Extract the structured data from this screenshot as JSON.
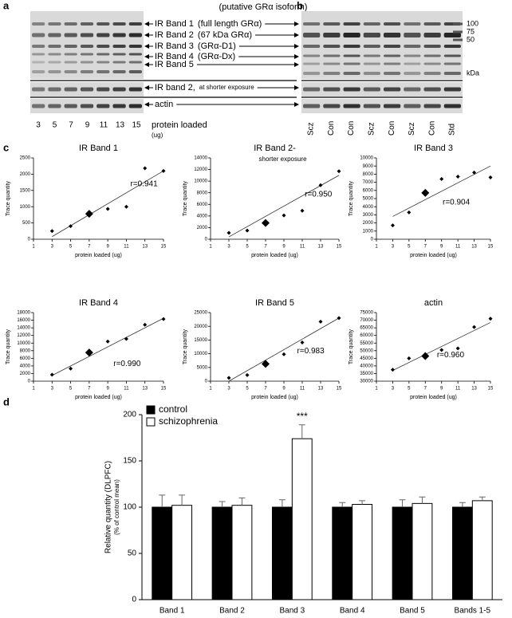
{
  "panels": [
    "a",
    "b",
    "c",
    "d"
  ],
  "blot_a": {
    "title": "(putative GRα isoform)",
    "bands": [
      {
        "label": "IR Band 1",
        "note": "(full length GRα)"
      },
      {
        "label": "IR Band 2",
        "note": "(67 kDa GRα)"
      },
      {
        "label": "IR Band 3",
        "note": "(GRα-D1)"
      },
      {
        "label": "IR Band 4",
        "note": "(GRα-Dx)"
      },
      {
        "label": "IR Band 5"
      },
      {
        "label": "IR band 2,",
        "note": "at shorter exposure"
      },
      {
        "label": "actin"
      }
    ],
    "lanes": [
      "3",
      "5",
      "7",
      "9",
      "11",
      "13",
      "15"
    ],
    "xlabel": "protein loaded",
    "xunit": "(ug)"
  },
  "blot_b": {
    "lanes": [
      "Scz",
      "Con",
      "Con",
      "Scz",
      "Con",
      "Scz",
      "Con",
      "Std"
    ],
    "markers": [
      "100",
      "75",
      "50"
    ],
    "unit": "kDa"
  },
  "chart_data": [
    {
      "type": "scatter",
      "title": "IR Band 1",
      "annotation": "r=0.941",
      "highlight_x": 7,
      "x": [
        3,
        5,
        7,
        9,
        11,
        13,
        15
      ],
      "values": [
        250,
        400,
        780,
        930,
        1000,
        2180,
        2100
      ],
      "trendline": {
        "x": [
          3,
          15
        ],
        "y": [
          80,
          2100
        ]
      },
      "xlim": [
        1,
        15
      ],
      "xticks": [
        1,
        3,
        5,
        7,
        9,
        11,
        13,
        15
      ],
      "ylim": [
        0,
        2500
      ],
      "yticks": [
        0,
        500,
        1000,
        1500,
        2000,
        2500
      ],
      "xlabel": "protein loaded (ug)",
      "ylabel": "Trace quantity"
    },
    {
      "type": "scatter",
      "title": "IR Band 2-",
      "subtitle": "shorter exposure",
      "annotation": "r=0.950",
      "highlight_x": 7,
      "x": [
        3,
        5,
        7,
        9,
        11,
        13,
        15
      ],
      "values": [
        1100,
        1500,
        2800,
        4100,
        4900,
        9300,
        11700
      ],
      "trendline": {
        "x": [
          3,
          15
        ],
        "y": [
          400,
          11000
        ]
      },
      "xlim": [
        1,
        15
      ],
      "xticks": [
        1,
        3,
        5,
        7,
        9,
        11,
        13,
        15
      ],
      "ylim": [
        0,
        14000
      ],
      "yticks": [
        0,
        2000,
        4000,
        6000,
        8000,
        10000,
        12000,
        14000
      ],
      "xlabel": "protein loaded (ug)",
      "ylabel": "Trace quantity"
    },
    {
      "type": "scatter",
      "title": "IR Band 3",
      "annotation": "r=0.904",
      "highlight_x": 7,
      "x": [
        3,
        5,
        7,
        9,
        11,
        13,
        15
      ],
      "values": [
        1700,
        3300,
        5700,
        7400,
        7700,
        8200,
        7600
      ],
      "trendline": {
        "x": [
          3,
          15
        ],
        "y": [
          2800,
          9000
        ]
      },
      "xlim": [
        1,
        15
      ],
      "xticks": [
        1,
        3,
        5,
        7,
        9,
        11,
        13,
        15
      ],
      "ylim": [
        0,
        10000
      ],
      "yticks": [
        0,
        1000,
        2000,
        3000,
        4000,
        5000,
        6000,
        7000,
        8000,
        9000,
        10000
      ],
      "xlabel": "protein loaded (ug)",
      "ylabel": "Trace quantity"
    },
    {
      "type": "scatter",
      "title": "IR Band 4",
      "annotation": "r=0.990",
      "highlight_x": 7,
      "x": [
        3,
        5,
        7,
        9,
        11,
        13,
        15
      ],
      "values": [
        1700,
        3300,
        7500,
        10400,
        11100,
        14800,
        16300
      ],
      "trendline": {
        "x": [
          3,
          15
        ],
        "y": [
          1500,
          16500
        ]
      },
      "xlim": [
        1,
        15
      ],
      "xticks": [
        1,
        3,
        5,
        7,
        9,
        11,
        13,
        15
      ],
      "ylim": [
        0,
        18000
      ],
      "yticks": [
        0,
        2000,
        4000,
        6000,
        8000,
        10000,
        12000,
        14000,
        16000,
        18000
      ],
      "xlabel": "protein loaded (ug)",
      "ylabel": "Trace quantity"
    },
    {
      "type": "scatter",
      "title": "IR Band 5",
      "annotation": "r=0.983",
      "highlight_x": 7,
      "x": [
        3,
        5,
        7,
        9,
        11,
        13,
        15
      ],
      "values": [
        1200,
        2200,
        6300,
        9800,
        14100,
        21700,
        23000
      ],
      "trendline": {
        "x": [
          3,
          15
        ],
        "y": [
          0,
          23000
        ]
      },
      "xlim": [
        1,
        15
      ],
      "xticks": [
        1,
        3,
        5,
        7,
        9,
        11,
        13,
        15
      ],
      "ylim": [
        0,
        25000
      ],
      "yticks": [
        0,
        5000,
        10000,
        15000,
        20000,
        25000
      ],
      "xlabel": "protein loaded (ug)",
      "ylabel": "Trace quantity"
    },
    {
      "type": "scatter",
      "title": "actin",
      "annotation": "r=0.960",
      "highlight_x": 7,
      "x": [
        3,
        5,
        7,
        9,
        11,
        13,
        15
      ],
      "values": [
        37500,
        45000,
        46500,
        50500,
        51500,
        65500,
        71000
      ],
      "trendline": {
        "x": [
          3,
          15
        ],
        "y": [
          37000,
          68500
        ]
      },
      "xlim": [
        1,
        15
      ],
      "xticks": [
        1,
        3,
        5,
        7,
        9,
        11,
        13,
        15
      ],
      "ylim": [
        30000,
        75000
      ],
      "yticks": [
        30000,
        35000,
        40000,
        45000,
        50000,
        55000,
        60000,
        65000,
        70000,
        75000
      ],
      "xlabel": "protein loaded (ug)",
      "ylabel": "Trace quantity"
    },
    {
      "type": "bar",
      "categories": [
        "Band 1",
        "Band 2",
        "Band 3",
        "Band 4",
        "Band 5",
        "Bands 1-5"
      ],
      "series": [
        {
          "name": "control",
          "color": "#000000",
          "values": [
            100,
            100,
            100,
            100,
            100,
            100
          ],
          "errors": [
            13,
            6,
            8,
            5,
            8,
            5
          ]
        },
        {
          "name": "schizophrenia",
          "color": "#ffffff",
          "values": [
            102,
            102,
            174,
            103,
            104,
            107
          ],
          "errors": [
            11,
            8,
            15,
            4,
            7,
            4
          ]
        }
      ],
      "annotations": [
        {
          "text": "***",
          "category": "Band 3"
        }
      ],
      "ylim": [
        0,
        200
      ],
      "yticks": [
        0,
        50,
        100,
        150,
        200
      ],
      "legend": "upper left",
      "ylabel": "Relative quantity (DLPFC)",
      "ylabel_sub": "(% of control mean)"
    }
  ]
}
